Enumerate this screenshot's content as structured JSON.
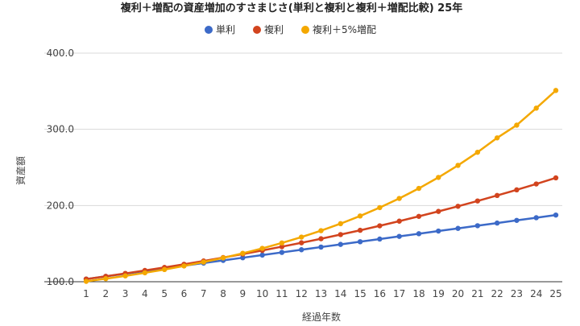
{
  "chart_data": {
    "type": "line",
    "title": "複利＋増配の資産増加のすさまじさ(単利と複利と複利＋増配比較) 25年",
    "xlabel": "経過年数",
    "ylabel": "資産額",
    "x": [
      1,
      2,
      3,
      4,
      5,
      6,
      7,
      8,
      9,
      10,
      11,
      12,
      13,
      14,
      15,
      16,
      17,
      18,
      19,
      20,
      21,
      22,
      23,
      24,
      25
    ],
    "ylim": [
      100,
      400
    ],
    "yticks": [
      "100.0",
      "200.0",
      "300.0",
      "400.0"
    ],
    "ytick_values": [
      100,
      200,
      300,
      400
    ],
    "grid": true,
    "legend_position": "top-center",
    "series": [
      {
        "name": "単利",
        "color": "#3c6ac8",
        "values": [
          103.5,
          107,
          110.5,
          114,
          117.5,
          121,
          124.5,
          128,
          131.5,
          135,
          138.5,
          142,
          145.5,
          149,
          152.5,
          156,
          159.5,
          163,
          166.5,
          170,
          173.5,
          177,
          180.5,
          184,
          187.5
        ]
      },
      {
        "name": "複利",
        "color": "#d2441e",
        "values": [
          103.5,
          107.1,
          110.9,
          114.8,
          118.8,
          122.9,
          127.2,
          131.7,
          136.3,
          141.1,
          146,
          151.1,
          156.4,
          161.9,
          167.5,
          173.4,
          179.5,
          185.8,
          192.3,
          199,
          206,
          213.2,
          220.6,
          228.3,
          236.3
        ]
      },
      {
        "name": "複利＋5%増配",
        "color": "#f4a800",
        "values": [
          100.5,
          104,
          107.7,
          111.7,
          116,
          120.7,
          125.8,
          131.3,
          137.3,
          143.8,
          150.9,
          158.6,
          167,
          176.2,
          186.3,
          197.3,
          209.3,
          222.5,
          236.9,
          252.7,
          269.9,
          288.8,
          305.5,
          327.8,
          351
        ]
      }
    ]
  }
}
